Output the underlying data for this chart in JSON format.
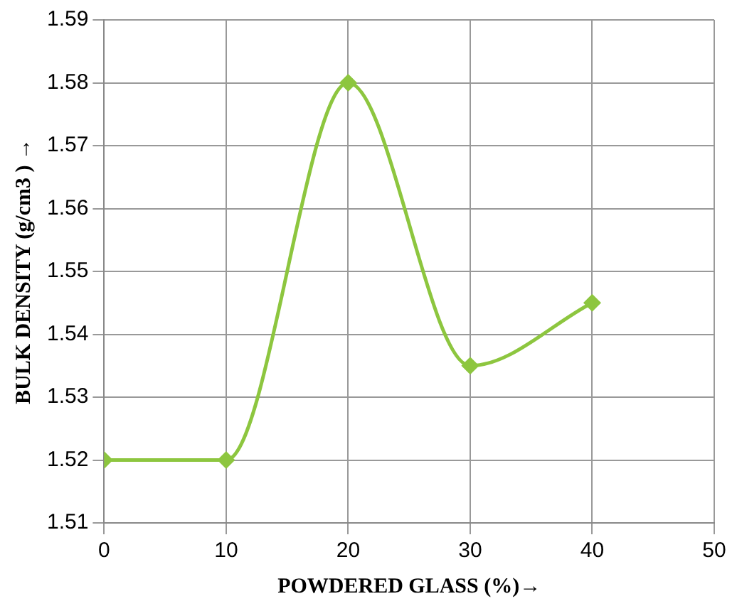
{
  "chart_data": {
    "type": "line",
    "xlabel": "POWDERED GLASS (%)→",
    "ylabel": "BULK DENSITY (g/cm3 ) →",
    "x": [
      0,
      10,
      20,
      30,
      40
    ],
    "series": [
      {
        "color": "#8dc63f",
        "values": [
          1.52,
          1.52,
          1.58,
          1.535,
          1.545
        ]
      }
    ],
    "xlim": [
      0,
      50
    ],
    "xticks": [
      0,
      10,
      20,
      30,
      40,
      50
    ],
    "ylim": [
      1.51,
      1.59
    ],
    "yticks": [
      1.51,
      1.52,
      1.53,
      1.54,
      1.55,
      1.56,
      1.57,
      1.58,
      1.59
    ],
    "grid": true,
    "marker": "diamond",
    "line_style": "solid"
  }
}
